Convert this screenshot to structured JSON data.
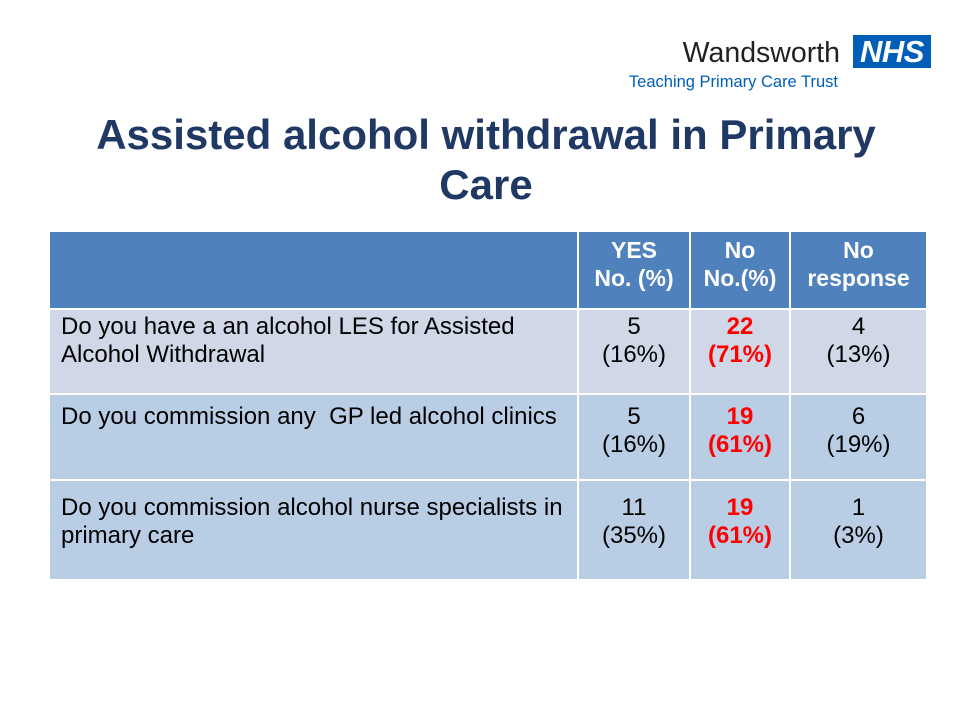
{
  "branding": {
    "org_name": "Wandsworth",
    "nhs_mark": "NHS",
    "trust_name": "Teaching Primary Care Trust"
  },
  "slide": {
    "title": "Assisted alcohol withdrawal in Primary Care"
  },
  "table": {
    "header": {
      "yes_label": "YES",
      "yes_unit": "No. (%)",
      "no_label": "No",
      "no_unit": "No.(%)",
      "no_response_label": "No response"
    },
    "rows": [
      {
        "question": "Do you have a an alcohol LES for Assisted Alcohol Withdrawal",
        "yes": {
          "count": "5",
          "pct": "(16%)"
        },
        "no": {
          "count": "22",
          "pct": "(71%)"
        },
        "no_response": {
          "count": "4",
          "pct": "(13%)"
        }
      },
      {
        "question": "Do you commission any  GP led alcohol clinics",
        "yes": {
          "count": "5",
          "pct": "(16%)"
        },
        "no": {
          "count": "19",
          "pct": "(61%)"
        },
        "no_response": {
          "count": "6",
          "pct": "(19%)"
        }
      },
      {
        "question": "Do you commission alcohol nurse specialists in primary care",
        "yes": {
          "count": "11",
          "pct": "(35%)"
        },
        "no": {
          "count": "19",
          "pct": "(61%)"
        },
        "no_response": {
          "count": "1",
          "pct": "(3%)"
        }
      }
    ]
  },
  "colors": {
    "header_bg": "#4f81bd",
    "row_band_1": "#d0d8e8",
    "row_band_2": "#b9cde5",
    "title": "#1f3864",
    "nhs_blue": "#005eb8",
    "no_column_text": "#ff0000"
  }
}
